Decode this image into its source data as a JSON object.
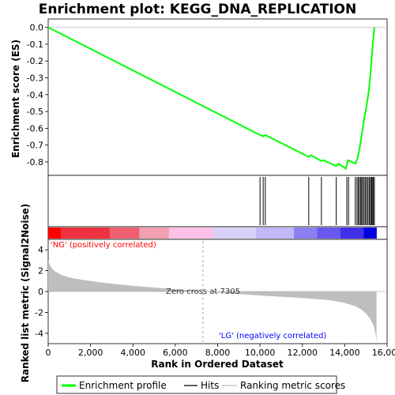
{
  "chart_data": {
    "type": "line",
    "title": "Enrichment plot: KEGG_DNA_REPLICATION",
    "xlabel": "Rank in Ordered Dataset",
    "ylabel_top": "Enrichment score (ES)",
    "ylabel_bottom": "Ranked list metric (Signal2Noise)",
    "xlim": [
      0,
      16000
    ],
    "x_ticks": [
      0,
      2000,
      4000,
      6000,
      8000,
      10000,
      12000,
      14000,
      16000
    ],
    "x_tick_labels": [
      "0",
      "2,000",
      "4,000",
      "6,000",
      "8,000",
      "10,000",
      "12,000",
      "14,000",
      "16,000"
    ],
    "es_ylim": [
      -0.88,
      0.05
    ],
    "es_ticks": [
      0.0,
      -0.1,
      -0.2,
      -0.3,
      -0.4,
      -0.5,
      -0.6,
      -0.7,
      -0.8
    ],
    "es_tick_labels": [
      "0.0",
      "-0.1",
      "-0.2",
      "-0.3",
      "-0.4",
      "-0.5",
      "-0.6",
      "-0.7",
      "-0.8"
    ],
    "metric_ylim": [
      -5,
      5
    ],
    "metric_ticks": [
      4,
      2,
      0,
      -2,
      -4
    ],
    "metric_tick_labels": [
      "4",
      "2",
      "0",
      "-2",
      "-4"
    ],
    "total_ranks": 15500,
    "enrichment_profile": {
      "name": "Enrichment profile",
      "color": "#00ff00",
      "x": [
        0,
        10000,
        10150,
        10250,
        12300,
        12400,
        12900,
        13000,
        13600,
        13700,
        14050,
        14150,
        14500,
        14600,
        14650,
        14700,
        14750,
        14800,
        14850,
        14900,
        14950,
        15000,
        15050,
        15100,
        15150,
        15200,
        15250,
        15300,
        15350,
        15400
      ],
      "y": [
        0.0,
        -0.64,
        -0.648,
        -0.64,
        -0.77,
        -0.76,
        -0.795,
        -0.79,
        -0.825,
        -0.81,
        -0.84,
        -0.79,
        -0.81,
        -0.78,
        -0.75,
        -0.72,
        -0.68,
        -0.64,
        -0.6,
        -0.56,
        -0.52,
        -0.49,
        -0.45,
        -0.41,
        -0.36,
        -0.3,
        -0.22,
        -0.14,
        -0.06,
        0.0
      ]
    },
    "hits": {
      "name": "Hits",
      "color": "#000000",
      "positions": [
        10000,
        10150,
        10250,
        12300,
        12900,
        13600,
        14100,
        14180,
        14500,
        14580,
        14640,
        14700,
        14760,
        14800,
        14860,
        14920,
        14980,
        15040,
        15100,
        15160,
        15220,
        15260,
        15300,
        15350,
        15400
      ]
    },
    "ranking_metric": {
      "name": "Ranking metric scores",
      "color": "#bebebe",
      "x": [
        0,
        50,
        150,
        300,
        600,
        1000,
        1500,
        2000,
        3000,
        4000,
        5000,
        6000,
        7000,
        7305,
        8000,
        9000,
        10000,
        11000,
        12000,
        13000,
        13500,
        14000,
        14500,
        14800,
        15000,
        15200,
        15350,
        15450,
        15500
      ],
      "y": [
        3.0,
        2.7,
        2.3,
        1.95,
        1.6,
        1.35,
        1.15,
        1.0,
        0.75,
        0.55,
        0.38,
        0.22,
        0.08,
        0.0,
        -0.1,
        -0.25,
        -0.38,
        -0.5,
        -0.62,
        -0.78,
        -0.9,
        -1.1,
        -1.4,
        -1.75,
        -2.1,
        -2.6,
        -3.2,
        -4.0,
        -4.8
      ]
    },
    "zero_cross": 7305,
    "zero_cross_label": "Zero cross at 7305",
    "pos_label": "'NG' (positively correlated)",
    "neg_label": "'LG' (negatively correlated)",
    "pos_label_color": "#ff0000",
    "neg_label_color": "#0000ff",
    "heatmap_colors": [
      "#ff0000",
      "#f0303e",
      "#f06070",
      "#f0a0b0",
      "#ffc0e8",
      "#d8d0f8",
      "#c0b8f8",
      "#8c80f0",
      "#6858f0",
      "#4030e8",
      "#0000e0"
    ],
    "heatmap_breaks": [
      0,
      600,
      2900,
      4300,
      5700,
      7800,
      9800,
      11600,
      12700,
      13800,
      14900,
      15500
    ],
    "legend": {
      "position": "bottom",
      "items": [
        "Enrichment profile",
        "Hits",
        "Ranking metric scores"
      ]
    }
  }
}
